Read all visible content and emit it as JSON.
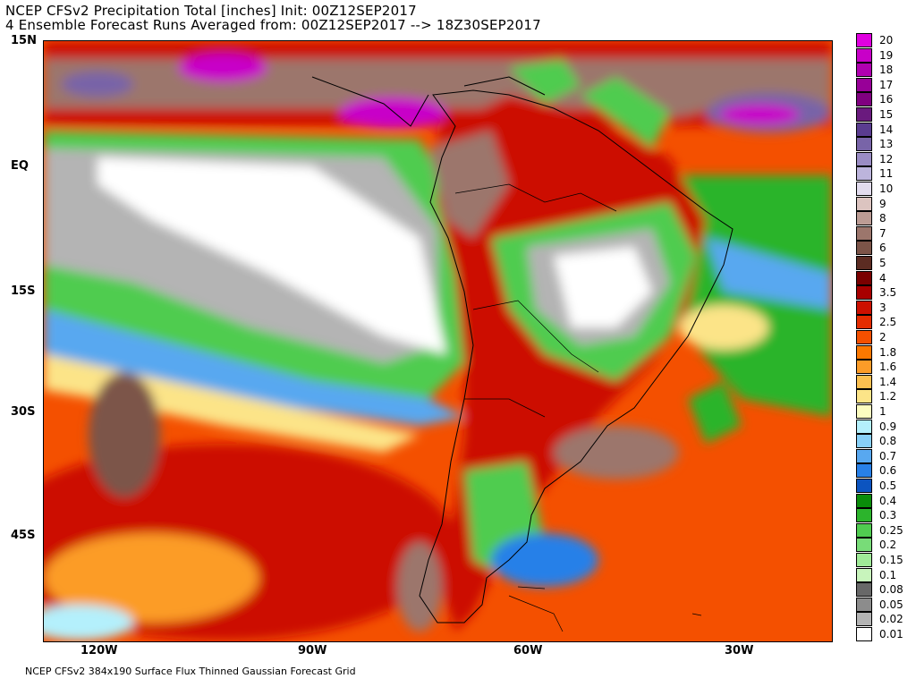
{
  "title": {
    "line1": "NCEP CFSv2 Precipitation Total [inches] Init: 00Z12SEP2017",
    "line2": "4 Ensemble Forecast Runs Averaged from: 00Z12SEP2017 --> 18Z30SEP2017"
  },
  "footer": "NCEP CFSv2 384x190 Surface Flux Thinned Gaussian Forecast Grid",
  "map": {
    "lat_labels": [
      "15N",
      "EQ",
      "15S",
      "30S",
      "45S"
    ],
    "lon_labels": [
      "120W",
      "90W",
      "60W",
      "30W"
    ],
    "region": "South America and surrounding oceans"
  },
  "legend": [
    {
      "label": "20",
      "color": "#e000e0"
    },
    {
      "label": "19",
      "color": "#c800c8"
    },
    {
      "label": "18",
      "color": "#b000b0"
    },
    {
      "label": "17",
      "color": "#980098"
    },
    {
      "label": "16",
      "color": "#800080"
    },
    {
      "label": "15",
      "color": "#6a1a7e"
    },
    {
      "label": "14",
      "color": "#5a3c90"
    },
    {
      "label": "13",
      "color": "#7864a8"
    },
    {
      "label": "12",
      "color": "#9a8cc4"
    },
    {
      "label": "11",
      "color": "#bcb4dc"
    },
    {
      "label": "10",
      "color": "#e2dcee"
    },
    {
      "label": "9",
      "color": "#dcc4c0"
    },
    {
      "label": "8",
      "color": "#bc9c94"
    },
    {
      "label": "7",
      "color": "#9c766c"
    },
    {
      "label": "6",
      "color": "#7c5448"
    },
    {
      "label": "5",
      "color": "#5c2c22"
    },
    {
      "label": "4",
      "color": "#7a0000"
    },
    {
      "label": "3.5",
      "color": "#a80000"
    },
    {
      "label": "3",
      "color": "#cc1000"
    },
    {
      "label": "2.5",
      "color": "#e42c00"
    },
    {
      "label": "2",
      "color": "#f45000"
    },
    {
      "label": "1.8",
      "color": "#fc7800"
    },
    {
      "label": "1.6",
      "color": "#fc9c28"
    },
    {
      "label": "1.4",
      "color": "#fcc050"
    },
    {
      "label": "1.2",
      "color": "#fce488"
    },
    {
      "label": "1",
      "color": "#fcfcc0"
    },
    {
      "label": "0.9",
      "color": "#b4f0fc"
    },
    {
      "label": "0.8",
      "color": "#88d0f8"
    },
    {
      "label": "0.7",
      "color": "#58a8f0"
    },
    {
      "label": "0.6",
      "color": "#2880e8"
    },
    {
      "label": "0.5",
      "color": "#0c54c0"
    },
    {
      "label": "0.4",
      "color": "#0a8c0a"
    },
    {
      "label": "0.3",
      "color": "#2cb42c"
    },
    {
      "label": "0.25",
      "color": "#50cc50"
    },
    {
      "label": "0.2",
      "color": "#78dc78"
    },
    {
      "label": "0.15",
      "color": "#a0ea98"
    },
    {
      "label": "0.1",
      "color": "#c8f4bc"
    },
    {
      "label": "0.08",
      "color": "#686868"
    },
    {
      "label": "0.05",
      "color": "#8c8c8c"
    },
    {
      "label": "0.02",
      "color": "#b4b4b4"
    },
    {
      "label": "0.01",
      "color": "#ffffff"
    }
  ]
}
